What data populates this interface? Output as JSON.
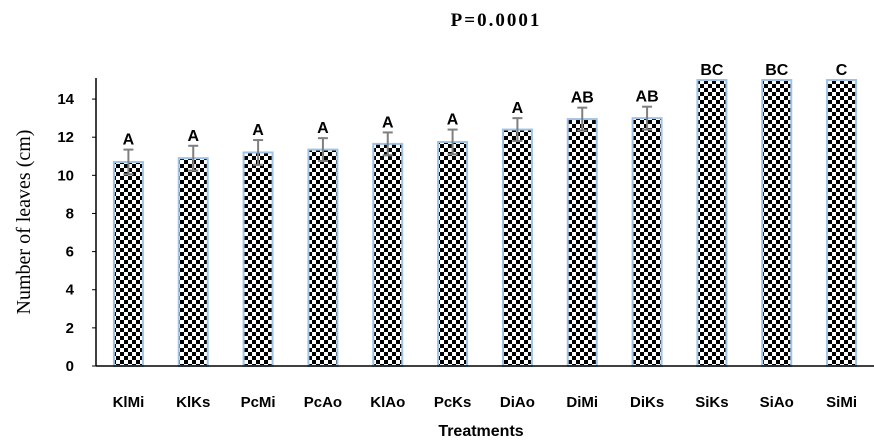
{
  "chart_data": {
    "type": "bar",
    "title": "P=0.0001",
    "xlabel": "Treatments",
    "ylabel": "Number of leaves (cm)",
    "ylim": [
      0,
      15
    ],
    "yticks": [
      0,
      2,
      4,
      6,
      8,
      10,
      12,
      14
    ],
    "grid": false,
    "categories": [
      "KlMi",
      "KlKs",
      "PcMi",
      "PcAo",
      "KlAo",
      "PcKs",
      "DiAo",
      "DiMi",
      "DiKs",
      "SiKs",
      "SiAo",
      "SiMi"
    ],
    "values": [
      10.7,
      10.9,
      11.2,
      11.35,
      11.65,
      11.75,
      12.4,
      12.95,
      13.0,
      15.0,
      15.0,
      15.0
    ],
    "errors": [
      0.65,
      0.65,
      0.65,
      0.6,
      0.6,
      0.65,
      0.6,
      0.6,
      0.6,
      0,
      0,
      0
    ],
    "labels": [
      "A",
      "A",
      "A",
      "A",
      "A",
      "A",
      "A",
      "AB",
      "AB",
      "BC",
      "BC",
      "C"
    ],
    "colors": {
      "bar_pattern_dark": "#000000",
      "bar_pattern_light": "#ffffff",
      "bar_edge": "#9fc3e6",
      "error_bar": "#7f7f7f",
      "axis": "#000000"
    }
  }
}
